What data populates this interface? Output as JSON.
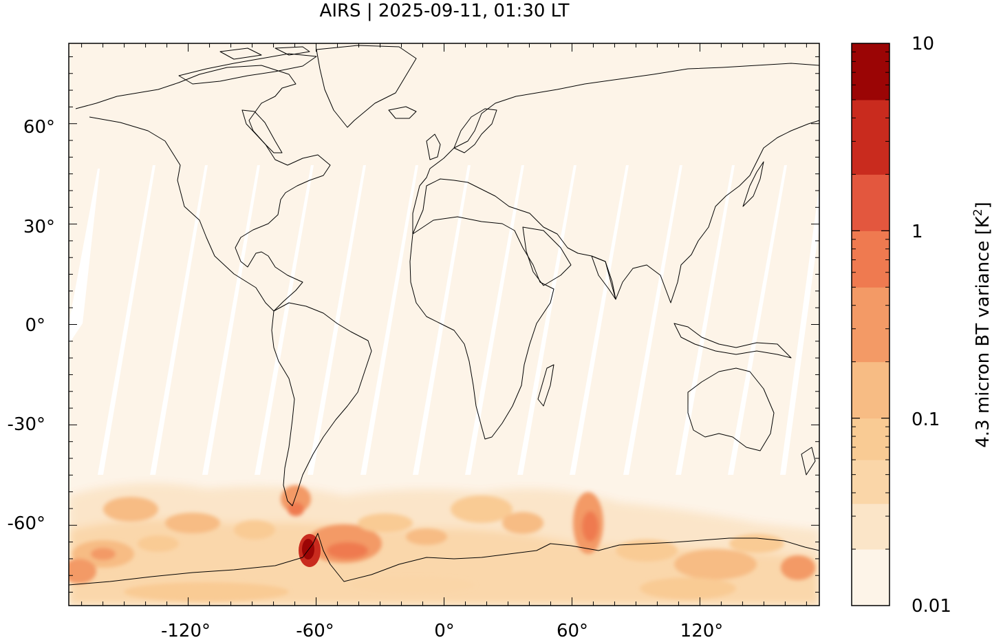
{
  "title": "AIRS | 2025-09-11, 01:30 LT",
  "map": {
    "x_ticks": [
      "-120°",
      "-60°",
      "0°",
      "60°",
      "120°"
    ],
    "y_ticks": [
      "60°",
      "30°",
      "0°",
      "-30°",
      "-60°"
    ],
    "lon_range": [
      -176,
      176
    ],
    "lat_range": [
      -84,
      84
    ],
    "background_color": "#fdf4e8",
    "swath_gap_color": "#ffffff",
    "coastline_color": "#000000"
  },
  "colorbar": {
    "label": "4.3 micron BT variance [K",
    "label_superscript": "2",
    "label_suffix": "]",
    "tick_labels": [
      "10",
      "1",
      "0.1",
      "0.01"
    ],
    "scale": "log",
    "range": [
      0.01,
      10
    ],
    "levels": [
      {
        "from": 0.01,
        "to": 0.02,
        "color": "#fdf4e8"
      },
      {
        "from": 0.02,
        "to": 0.035,
        "color": "#fbe5c8"
      },
      {
        "from": 0.035,
        "to": 0.06,
        "color": "#fad6a8"
      },
      {
        "from": 0.06,
        "to": 0.1,
        "color": "#f9cb94"
      },
      {
        "from": 0.1,
        "to": 0.2,
        "color": "#f7bc84"
      },
      {
        "from": 0.2,
        "to": 0.5,
        "color": "#f39a66"
      },
      {
        "from": 0.5,
        "to": 1.0,
        "color": "#ef7a50"
      },
      {
        "from": 1.0,
        "to": 2.0,
        "color": "#e3573e"
      },
      {
        "from": 2.0,
        "to": 5.0,
        "color": "#c92b1e"
      },
      {
        "from": 5.0,
        "to": 10.0,
        "color": "#9b0505"
      }
    ]
  }
}
